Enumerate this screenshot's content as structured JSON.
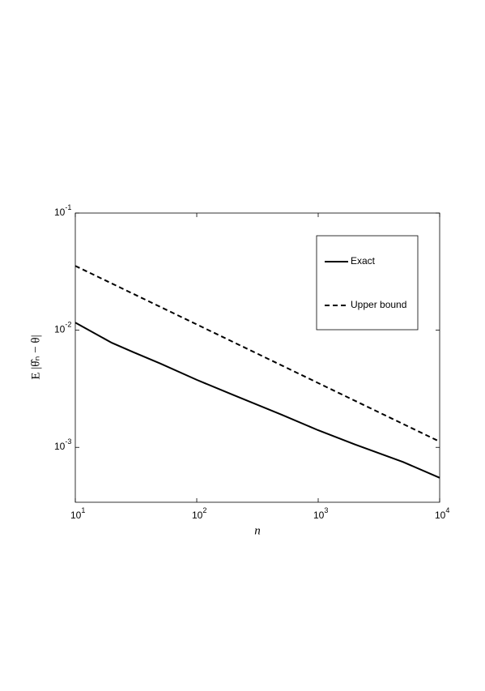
{
  "chart_data": {
    "type": "line",
    "xlabel": "n",
    "ylabel": "E |θ̂ₙ − θ|",
    "xscale": "log",
    "yscale": "log",
    "legend": "northeast",
    "x": [
      10,
      20,
      30,
      50,
      100,
      200,
      500,
      1000,
      2000,
      5000,
      10000
    ],
    "series": [
      {
        "name": "Exact",
        "color": "#000000",
        "dash": "solid",
        "values": [
          0.0116,
          0.0078,
          0.0065,
          0.0052,
          0.00377,
          0.0028,
          0.0019,
          0.0014,
          0.00106,
          0.00075,
          0.00055
        ]
      },
      {
        "name": "Upper bound",
        "color": "#000000",
        "dash": "dashed",
        "values": [
          0.0354,
          null,
          null,
          null,
          0.0112,
          null,
          null,
          0.00354,
          null,
          null,
          0.00112
        ]
      }
    ],
    "xlim": [
      10,
      10000
    ],
    "ylim": [
      0.00034,
      0.1
    ],
    "xticks": [
      {
        "value": 10,
        "label": "10",
        "exp": "1"
      },
      {
        "value": 100,
        "label": "10",
        "exp": "2"
      },
      {
        "value": 1000,
        "label": "10",
        "exp": "3"
      },
      {
        "value": 10000,
        "label": "10",
        "exp": "4"
      }
    ],
    "yticks": [
      {
        "value": 0.001,
        "label": "10",
        "exp": "-3"
      },
      {
        "value": 0.01,
        "label": "10",
        "exp": "-2"
      },
      {
        "value": 0.1,
        "label": "10",
        "exp": "-1"
      }
    ]
  }
}
